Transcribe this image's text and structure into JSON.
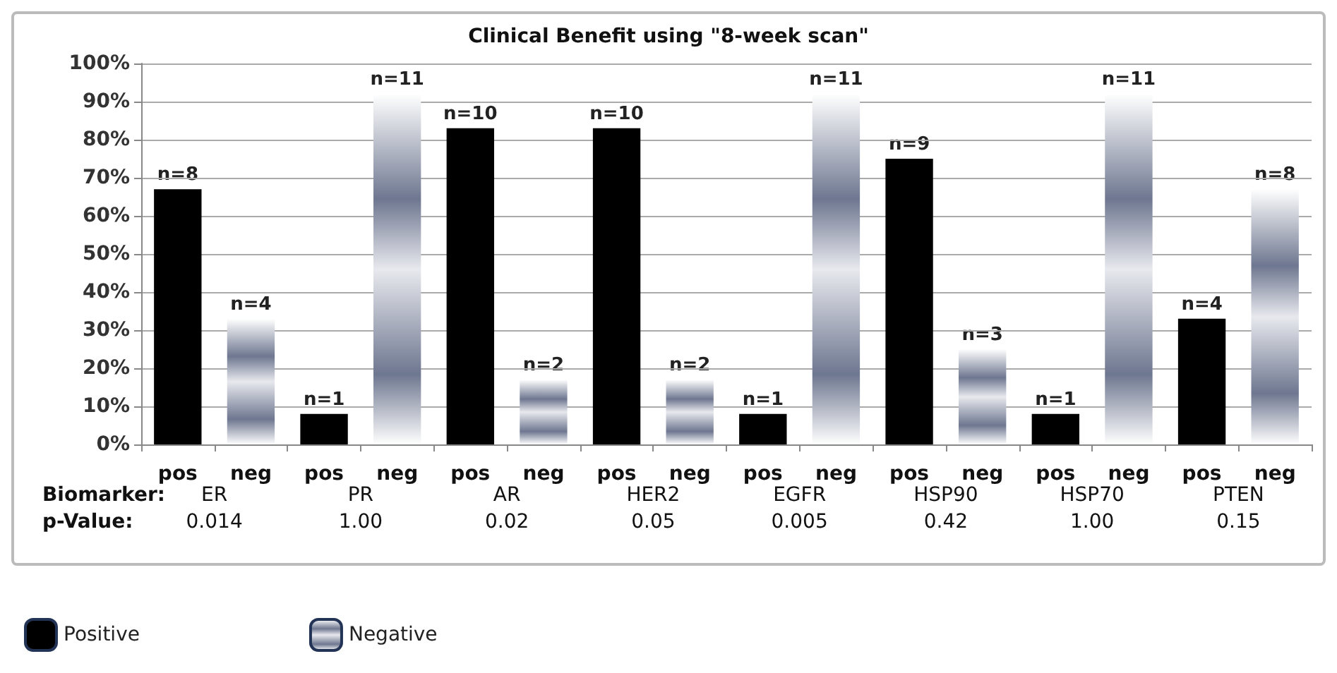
{
  "chart_data": {
    "type": "bar",
    "title": "Clinical Benefit using \"8-week scan\"",
    "categories": [
      "pos",
      "neg",
      "pos",
      "neg",
      "pos",
      "neg",
      "pos",
      "neg",
      "pos",
      "neg",
      "pos",
      "neg",
      "pos",
      "neg",
      "pos",
      "neg"
    ],
    "series": [
      {
        "name": "Positive",
        "color": "#000000",
        "values": [
          67,
          null,
          8,
          null,
          83,
          null,
          83,
          null,
          8,
          null,
          75,
          null,
          8,
          null,
          33,
          null
        ]
      },
      {
        "name": "Negative",
        "color": "#6e7790",
        "values": [
          null,
          33,
          null,
          92,
          null,
          17,
          null,
          17,
          null,
          92,
          null,
          25,
          null,
          92,
          null,
          67
        ]
      }
    ],
    "ylim": [
      0,
      100
    ],
    "yticks": [
      {
        "value": 0,
        "label": "0%"
      },
      {
        "value": 10,
        "label": "10%"
      },
      {
        "value": 20,
        "label": "20%"
      },
      {
        "value": 30,
        "label": "30%"
      },
      {
        "value": 40,
        "label": "40%"
      },
      {
        "value": 50,
        "label": "50%"
      },
      {
        "value": 60,
        "label": "60%"
      },
      {
        "value": 70,
        "label": "70%"
      },
      {
        "value": 80,
        "label": "80%"
      },
      {
        "value": 90,
        "label": "90%"
      },
      {
        "value": 100,
        "label": "100%"
      }
    ],
    "grid": "y",
    "legend": "bottom left",
    "annotations": [
      "Biomarker:",
      "ER",
      "PR",
      "AR",
      "HER2",
      "EGFR",
      "HSP90",
      "HSP70",
      "PTEN",
      "p-Value:",
      "0.014",
      "1.00",
      "0.02",
      "0.05",
      "0.005",
      "0.42",
      "1.00",
      "0.15",
      {
        "text": "n=8",
        "y": 67
      },
      {
        "text": "n=4",
        "y": 33
      },
      {
        "text": "n=1",
        "y": 8
      },
      {
        "text": "n=11",
        "y": 92
      },
      {
        "text": "n=10",
        "y": 83
      },
      {
        "text": "n=2",
        "y": 17
      },
      {
        "text": "n=10",
        "y": 83
      },
      {
        "text": "n=2",
        "y": 17
      },
      {
        "text": "n=1",
        "y": 8
      },
      {
        "text": "n=11",
        "y": 92
      },
      {
        "text": "n=9",
        "y": 75
      },
      {
        "text": "n=3",
        "y": 25
      },
      {
        "text": "n=1",
        "y": 8
      },
      {
        "text": "n=11",
        "y": 92
      },
      {
        "text": "n=4",
        "y": 33
      },
      {
        "text": "n=8",
        "y": 67
      }
    ]
  }
}
